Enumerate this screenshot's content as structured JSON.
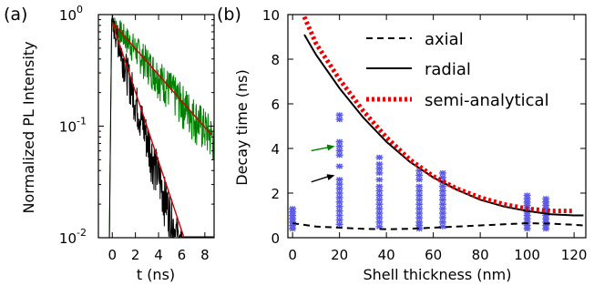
{
  "panel_labels": {
    "a": "(a)",
    "b": "(b)"
  },
  "chart_data": [
    {
      "type": "line",
      "panel": "(a)",
      "xlabel": "t (ns)",
      "ylabel": "Normalized PL Intensity",
      "xlim": [
        -1.2,
        8.8
      ],
      "ylim": [
        0.01,
        1
      ],
      "yscale": "log",
      "x_ticks": [
        0,
        2,
        4,
        6,
        8
      ],
      "x_tick_labels": [
        "0",
        "2",
        "4",
        "6",
        "8"
      ],
      "y_ticks": [
        0.01,
        0.1,
        1
      ],
      "y_tick_labels": [
        {
          "base": "10",
          "exp": "-2"
        },
        {
          "base": "10",
          "exp": "-1"
        },
        {
          "base": "10",
          "exp": "0"
        }
      ],
      "series": [
        {
          "color": "#008000",
          "kind": "noisy-decay",
          "t0": 0,
          "amp": 0.85,
          "tau_ns": 3.7
        },
        {
          "color": "#000000",
          "kind": "noisy-decay",
          "t0": 0,
          "amp": 0.85,
          "tau_ns": 1.27
        },
        {
          "color": "#cc0000",
          "kind": "fit",
          "x": [
            0,
            8.6
          ],
          "y": [
            0.85,
            0.083
          ]
        },
        {
          "color": "#cc0000",
          "kind": "fit",
          "x": [
            0,
            6.2
          ],
          "y": [
            0.85,
            0.0063
          ]
        }
      ]
    },
    {
      "type": "line",
      "panel": "(b)",
      "xlabel": "Shell thickness (nm)",
      "ylabel": "Decay time (ns)",
      "xlim": [
        -2,
        125
      ],
      "ylim": [
        0,
        10
      ],
      "x_ticks": [
        0,
        20,
        40,
        60,
        80,
        100,
        120
      ],
      "y_ticks": [
        0,
        2,
        4,
        6,
        8,
        10
      ],
      "legend_position": "top-right",
      "series": [
        {
          "name": "axial",
          "style": "dashed",
          "color": "#000000",
          "x": [
            0,
            10,
            20,
            30,
            40,
            50,
            60,
            70,
            80,
            90,
            100,
            110,
            120,
            124
          ],
          "y": [
            0.65,
            0.5,
            0.45,
            0.4,
            0.38,
            0.4,
            0.45,
            0.5,
            0.55,
            0.6,
            0.65,
            0.63,
            0.58,
            0.55
          ]
        },
        {
          "name": "radial",
          "style": "solid",
          "color": "#000000",
          "x": [
            5,
            10,
            20,
            30,
            40,
            50,
            60,
            70,
            80,
            90,
            100,
            110,
            120,
            124
          ],
          "y": [
            9.1,
            8.2,
            6.7,
            5.4,
            4.3,
            3.4,
            2.7,
            2.15,
            1.7,
            1.4,
            1.2,
            1.05,
            1.0,
            1.0
          ]
        },
        {
          "name": "semi-analytical",
          "style": "dotted",
          "color": "#ee0000",
          "x": [
            5,
            10,
            20,
            30,
            40,
            50,
            60,
            70,
            80,
            90,
            100,
            110,
            120
          ],
          "y": [
            9.9,
            8.7,
            7.1,
            5.7,
            4.5,
            3.5,
            2.75,
            2.2,
            1.8,
            1.5,
            1.3,
            1.2,
            1.2
          ]
        }
      ],
      "scatter": {
        "color": "#5a5ae6",
        "points": [
          {
            "x": 0,
            "y": [
              0.4,
              0.55,
              0.7,
              0.85,
              1.0,
              1.15,
              1.3
            ]
          },
          {
            "x": 20,
            "y": [
              0.6,
              0.8,
              1.0,
              1.2,
              1.4,
              1.6,
              1.8,
              2.0,
              2.2,
              2.4,
              2.6,
              3.2,
              3.7,
              3.9,
              4.1,
              4.3,
              5.3,
              5.5
            ]
          },
          {
            "x": 37,
            "y": [
              0.5,
              0.7,
              0.9,
              1.1,
              1.3,
              1.5,
              1.7,
              1.9,
              2.1,
              2.3,
              2.6,
              2.9,
              3.1,
              3.3,
              3.6
            ]
          },
          {
            "x": 54,
            "y": [
              0.4,
              0.55,
              0.7,
              0.9,
              1.1,
              1.3,
              1.5,
              1.7,
              1.9,
              2.1,
              2.3,
              2.6,
              2.8,
              3.0
            ]
          },
          {
            "x": 64,
            "y": [
              0.5,
              0.7,
              0.9,
              1.1,
              1.3,
              1.5,
              1.7,
              1.9,
              2.1,
              2.3,
              2.5,
              2.7,
              2.9
            ]
          },
          {
            "x": 100,
            "y": [
              0.4,
              0.55,
              0.7,
              0.85,
              1.0,
              1.15,
              1.3,
              1.45,
              1.6,
              1.75,
              1.9
            ]
          },
          {
            "x": 108,
            "y": [
              0.4,
              0.55,
              0.7,
              0.85,
              1.0,
              1.15,
              1.3,
              1.45,
              1.6,
              1.75
            ]
          }
        ]
      },
      "annotations": [
        {
          "type": "arrow",
          "color": "#008000",
          "from": [
            8,
            3.9
          ],
          "to": [
            18,
            4.1
          ]
        },
        {
          "type": "arrow",
          "color": "#000000",
          "from": [
            8,
            2.5
          ],
          "to": [
            18,
            2.8
          ]
        }
      ]
    }
  ]
}
